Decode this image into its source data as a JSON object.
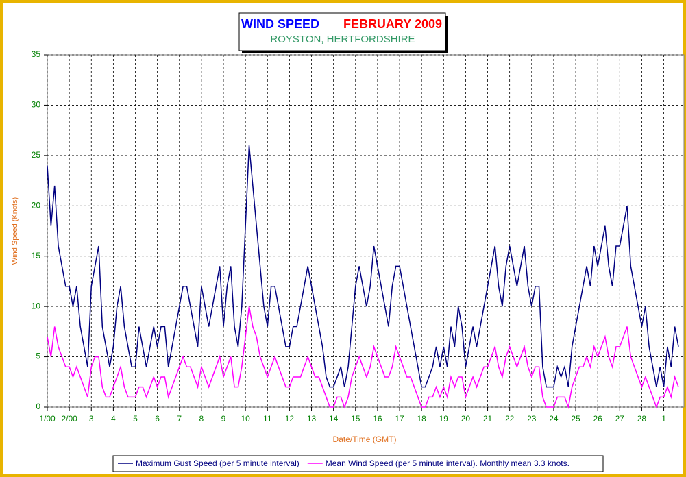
{
  "chart_data": {
    "type": "line",
    "title": "WIND SPEED",
    "period": "FEBRUARY 2009",
    "subtitle": "ROYSTON, HERTFORDSHIRE",
    "x_label": "Date/Time (GMT)",
    "y_label": "Wind Speed (Knots)",
    "xlim": [
      0,
      694
    ],
    "ylim": [
      0,
      35
    ],
    "yticks": [
      0,
      5,
      10,
      15,
      20,
      25,
      30,
      35
    ],
    "xticks": [
      {
        "value": 0,
        "label": "1/00"
      },
      {
        "value": 24,
        "label": "2/00"
      },
      {
        "value": 48,
        "label": "3"
      },
      {
        "value": 72,
        "label": "4"
      },
      {
        "value": 96,
        "label": "5"
      },
      {
        "value": 120,
        "label": "6"
      },
      {
        "value": 144,
        "label": "7"
      },
      {
        "value": 168,
        "label": "8"
      },
      {
        "value": 192,
        "label": "9"
      },
      {
        "value": 216,
        "label": "10"
      },
      {
        "value": 240,
        "label": "11"
      },
      {
        "value": 264,
        "label": "12"
      },
      {
        "value": 288,
        "label": "13"
      },
      {
        "value": 312,
        "label": "14"
      },
      {
        "value": 336,
        "label": "15"
      },
      {
        "value": 360,
        "label": "16"
      },
      {
        "value": 384,
        "label": "17"
      },
      {
        "value": 408,
        "label": "18"
      },
      {
        "value": 432,
        "label": "19"
      },
      {
        "value": 456,
        "label": "20"
      },
      {
        "value": 480,
        "label": "21"
      },
      {
        "value": 504,
        "label": "22"
      },
      {
        "value": 528,
        "label": "23"
      },
      {
        "value": 552,
        "label": "24"
      },
      {
        "value": 576,
        "label": "25"
      },
      {
        "value": 600,
        "label": "26"
      },
      {
        "value": 624,
        "label": "27"
      },
      {
        "value": 648,
        "label": "28"
      },
      {
        "value": 672,
        "label": "1"
      }
    ],
    "grid": true,
    "x": [
      0,
      4,
      8,
      12,
      16,
      20,
      24,
      28,
      32,
      36,
      40,
      44,
      48,
      52,
      56,
      60,
      64,
      68,
      72,
      76,
      80,
      84,
      88,
      92,
      96,
      100,
      104,
      108,
      112,
      116,
      120,
      124,
      128,
      132,
      136,
      140,
      144,
      148,
      152,
      156,
      160,
      164,
      168,
      172,
      176,
      180,
      184,
      188,
      192,
      196,
      200,
      204,
      208,
      212,
      216,
      220,
      224,
      228,
      232,
      236,
      240,
      244,
      248,
      252,
      256,
      260,
      264,
      268,
      272,
      276,
      280,
      284,
      288,
      292,
      296,
      300,
      304,
      308,
      312,
      316,
      320,
      324,
      328,
      332,
      336,
      340,
      344,
      348,
      352,
      356,
      360,
      364,
      368,
      372,
      376,
      380,
      384,
      388,
      392,
      396,
      400,
      404,
      408,
      412,
      416,
      420,
      424,
      428,
      432,
      436,
      440,
      444,
      448,
      452,
      456,
      460,
      464,
      468,
      472,
      476,
      480,
      484,
      488,
      492,
      496,
      500,
      504,
      508,
      512,
      516,
      520,
      524,
      528,
      532,
      536,
      540,
      544,
      548,
      552,
      556,
      560,
      564,
      568,
      572,
      576,
      580,
      584,
      588,
      592,
      596,
      600,
      604,
      608,
      612,
      616,
      620,
      624,
      628,
      632,
      636,
      640,
      644,
      648,
      652,
      656,
      660,
      664,
      668,
      672,
      676,
      680,
      684,
      688
    ],
    "series": [
      {
        "name": "Maximum Gust Speed (per 5 minute interval)",
        "color": "#000080",
        "values": [
          24,
          18,
          22,
          16,
          14,
          12,
          12,
          10,
          12,
          8,
          6,
          4,
          12,
          14,
          16,
          8,
          6,
          4,
          6,
          10,
          12,
          8,
          6,
          4,
          4,
          8,
          6,
          4,
          6,
          8,
          6,
          8,
          8,
          4,
          6,
          8,
          10,
          12,
          12,
          10,
          8,
          6,
          12,
          10,
          8,
          10,
          12,
          14,
          8,
          12,
          14,
          8,
          6,
          10,
          18,
          26,
          22,
          18,
          14,
          10,
          8,
          12,
          12,
          10,
          8,
          6,
          6,
          8,
          8,
          10,
          12,
          14,
          12,
          10,
          8,
          6,
          3,
          2,
          2,
          3,
          4,
          2,
          4,
          8,
          12,
          14,
          12,
          10,
          12,
          16,
          14,
          12,
          10,
          8,
          12,
          14,
          14,
          12,
          10,
          8,
          6,
          4,
          2,
          2,
          3,
          4,
          6,
          4,
          6,
          4,
          8,
          6,
          10,
          8,
          4,
          6,
          8,
          6,
          8,
          10,
          12,
          14,
          16,
          12,
          10,
          14,
          16,
          14,
          12,
          14,
          16,
          12,
          10,
          12,
          12,
          4,
          2,
          2,
          2,
          4,
          3,
          4,
          2,
          6,
          8,
          10,
          12,
          14,
          12,
          16,
          14,
          16,
          18,
          14,
          12,
          16,
          16,
          18,
          20,
          14,
          12,
          10,
          8,
          10,
          6,
          4,
          2,
          4,
          2,
          6,
          4,
          8,
          6
        ]
      },
      {
        "name": "Mean Wind Speed (per 5 minute interval). Monthly mean 3.3 knots.",
        "color": "#ff00ff",
        "values": [
          7,
          5,
          8,
          6,
          5,
          4,
          4,
          3,
          4,
          3,
          2,
          1,
          4,
          5,
          5,
          2,
          1,
          1,
          2,
          3,
          4,
          2,
          1,
          1,
          1,
          2,
          2,
          1,
          2,
          3,
          2,
          3,
          3,
          1,
          2,
          3,
          4,
          5,
          4,
          4,
          3,
          2,
          4,
          3,
          2,
          3,
          4,
          5,
          3,
          4,
          5,
          2,
          2,
          4,
          7,
          10,
          8,
          7,
          5,
          4,
          3,
          4,
          5,
          4,
          3,
          2,
          2,
          3,
          3,
          3,
          4,
          5,
          4,
          3,
          3,
          2,
          1,
          0,
          0,
          1,
          1,
          0,
          1,
          3,
          4,
          5,
          4,
          3,
          4,
          6,
          5,
          4,
          3,
          3,
          4,
          6,
          5,
          4,
          3,
          3,
          2,
          1,
          0,
          0,
          1,
          1,
          2,
          1,
          2,
          1,
          3,
          2,
          3,
          3,
          1,
          2,
          3,
          2,
          3,
          4,
          4,
          5,
          6,
          4,
          3,
          5,
          6,
          5,
          4,
          5,
          6,
          4,
          3,
          4,
          4,
          1,
          0,
          0,
          0,
          1,
          1,
          1,
          0,
          2,
          3,
          4,
          4,
          5,
          4,
          6,
          5,
          6,
          7,
          5,
          4,
          6,
          6,
          7,
          8,
          5,
          4,
          3,
          2,
          3,
          2,
          1,
          0,
          1,
          1,
          2,
          1,
          3,
          2
        ]
      }
    ]
  }
}
